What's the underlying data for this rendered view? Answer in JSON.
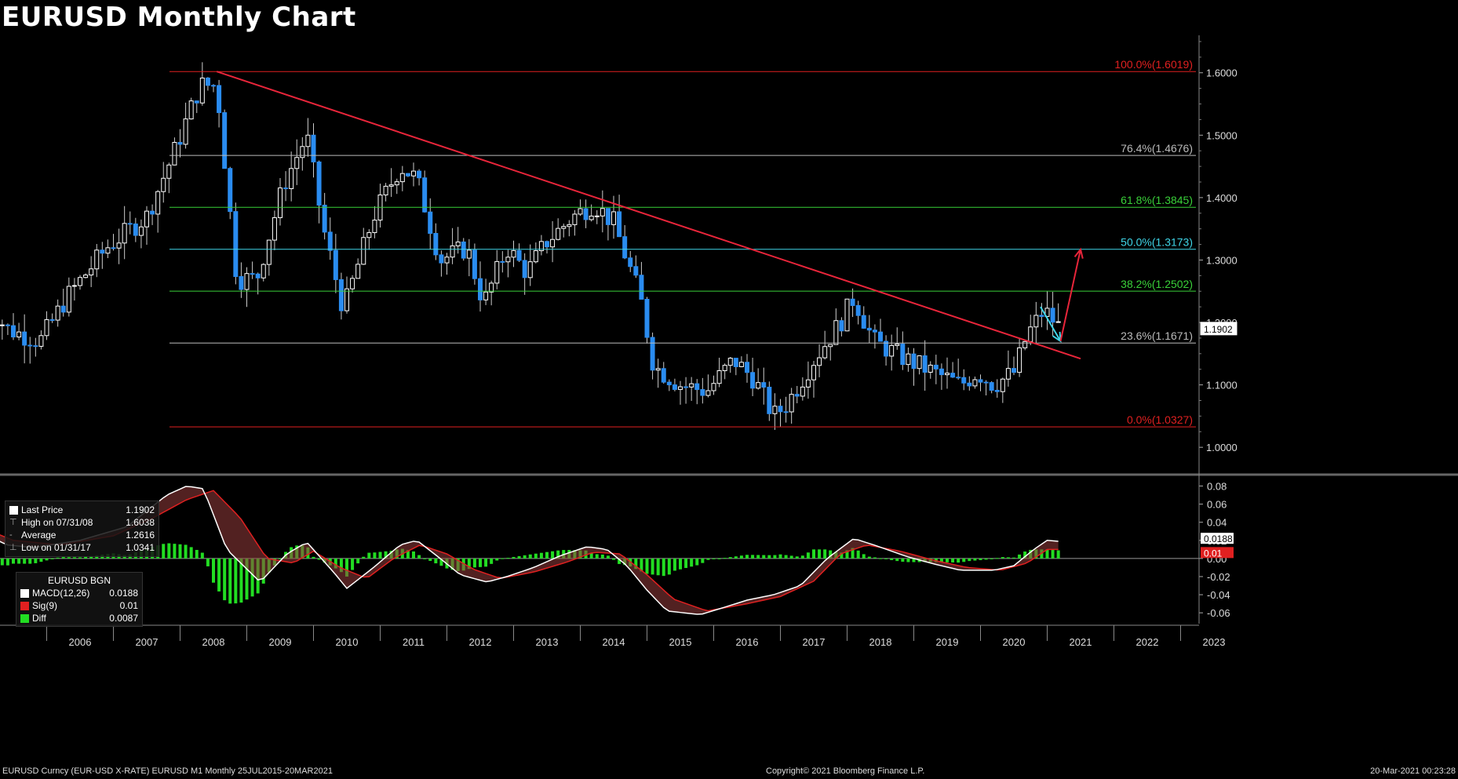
{
  "title": "EURUSD Monthly Chart",
  "footer": {
    "left": "EURUSD Curncy (EUR-USD X-RATE) EURUSD M1  Monthly 25JUL2015-20MAR2021",
    "center": "Copyright© 2021 Bloomberg Finance L.P.",
    "right": "20-Mar-2021 00:23:28"
  },
  "price_legend": {
    "last_price_label": "Last Price",
    "last_price": "1.1902",
    "high_label": "High on 07/31/08",
    "high": "1.6038",
    "avg_label": "Average",
    "avg": "1.2616",
    "low_label": "Low on 01/31/17",
    "low": "1.0341"
  },
  "macd_legend": {
    "title": "EURUSD BGN",
    "macd_label": "MACD(12,26)",
    "macd": "0.0188",
    "sig_label": "Sig(9)",
    "sig": "0.01",
    "diff_label": "Diff",
    "diff": "0.0087"
  },
  "colors": {
    "background": "#000000",
    "bull_candle": "#ffffff",
    "bear_candle": "#2a8cf0",
    "trendline": "#e8253a",
    "fib_red": "#e02020",
    "fib_gray": "#bbbbbb",
    "fib_green": "#39d039",
    "fib_cyan": "#3fd6e8",
    "macd_line": "#ffffff",
    "signal_line": "#e02020",
    "hist": "#22dd22"
  },
  "chart_data": [
    {
      "type": "candlestick",
      "title": "EURUSD Monthly Chart",
      "x_tick_labels": [
        "2006",
        "2007",
        "2008",
        "2009",
        "2010",
        "2011",
        "2012",
        "2013",
        "2014",
        "2015",
        "2016",
        "2017",
        "2018",
        "2019",
        "2020",
        "2021",
        "2022",
        "2023"
      ],
      "y_range": [
        0.96,
        1.66
      ],
      "y_ticks": [
        1.0,
        1.1,
        1.2,
        1.3,
        1.4,
        1.5,
        1.6
      ],
      "y_tick_labels": [
        "1.0000",
        "1.1000",
        "1.2000",
        "1.3000",
        "1.4000",
        "1.5000",
        "1.6000"
      ],
      "last_price_tag": "1.1902",
      "monthly_close_anchors": [
        [
          2005.0,
          1.245
        ],
        [
          2005.4,
          1.19
        ],
        [
          2005.9,
          1.17
        ],
        [
          2006.3,
          1.24
        ],
        [
          2006.9,
          1.32
        ],
        [
          2007.5,
          1.37
        ],
        [
          2007.9,
          1.47
        ],
        [
          2008.3,
          1.58
        ],
        [
          2008.55,
          1.58
        ],
        [
          2008.85,
          1.27
        ],
        [
          2009.15,
          1.27
        ],
        [
          2009.55,
          1.42
        ],
        [
          2009.9,
          1.5
        ],
        [
          2010.15,
          1.35
        ],
        [
          2010.45,
          1.22
        ],
        [
          2010.9,
          1.37
        ],
        [
          2011.3,
          1.45
        ],
        [
          2011.55,
          1.43
        ],
        [
          2011.9,
          1.3
        ],
        [
          2012.3,
          1.32
        ],
        [
          2012.55,
          1.23
        ],
        [
          2012.9,
          1.32
        ],
        [
          2013.2,
          1.28
        ],
        [
          2013.5,
          1.33
        ],
        [
          2013.9,
          1.37
        ],
        [
          2014.2,
          1.39
        ],
        [
          2014.5,
          1.36
        ],
        [
          2014.9,
          1.24
        ],
        [
          2015.1,
          1.13
        ],
        [
          2015.5,
          1.1
        ],
        [
          2015.9,
          1.09
        ],
        [
          2016.3,
          1.14
        ],
        [
          2016.6,
          1.11
        ],
        [
          2016.9,
          1.05
        ],
        [
          2017.1,
          1.07
        ],
        [
          2017.5,
          1.14
        ],
        [
          2017.9,
          1.2
        ],
        [
          2018.1,
          1.24
        ],
        [
          2018.4,
          1.17
        ],
        [
          2018.9,
          1.14
        ],
        [
          2019.3,
          1.12
        ],
        [
          2019.7,
          1.1
        ],
        [
          2019.95,
          1.12
        ],
        [
          2020.2,
          1.1
        ],
        [
          2020.5,
          1.12
        ],
        [
          2020.7,
          1.18
        ],
        [
          2020.95,
          1.22
        ],
        [
          2021.2,
          1.19
        ]
      ],
      "fib_levels": [
        {
          "label": "100.0%(1.6019)",
          "value": 1.6019,
          "color": "red"
        },
        {
          "label": "76.4%(1.4676)",
          "value": 1.4676,
          "color": "gray"
        },
        {
          "label": "61.8%(1.3845)",
          "value": 1.3845,
          "color": "green"
        },
        {
          "label": "50.0%(1.3173)",
          "value": 1.3173,
          "color": "cyan"
        },
        {
          "label": "38.2%(1.2502)",
          "value": 1.2502,
          "color": "green"
        },
        {
          "label": "23.6%(1.1671)",
          "value": 1.1671,
          "color": "gray"
        },
        {
          "label": "0.0%(1.0327)",
          "value": 1.0327,
          "color": "red"
        }
      ],
      "trendline": {
        "start": [
          2008.55,
          1.6019
        ],
        "end": [
          2021.5,
          1.142
        ]
      },
      "arrows": [
        {
          "from": [
            2020.9,
            1.225
          ],
          "to": [
            2021.2,
            1.17
          ],
          "color": "cyan"
        },
        {
          "from": [
            2021.2,
            1.17
          ],
          "to": [
            2021.5,
            1.317
          ],
          "color": "red"
        }
      ]
    },
    {
      "type": "line",
      "title": "EURUSD BGN",
      "series": [
        {
          "name": "MACD(12,26)",
          "last": 0.0188
        },
        {
          "name": "Sig(9)",
          "last": 0.01
        },
        {
          "name": "Diff",
          "last": 0.0087
        }
      ],
      "y_range": [
        -0.072,
        0.09
      ],
      "y_ticks": [
        -0.06,
        -0.04,
        -0.02,
        0.0,
        0.02,
        0.04,
        0.06,
        0.08
      ],
      "y_tick_labels": [
        "-0.06",
        "-0.04",
        "-0.02",
        "0.00",
        "0.02",
        "0.04",
        "0.06",
        "0.08"
      ],
      "value_tags": [
        "0.0188",
        "0.01"
      ],
      "macd_anchors": [
        [
          2005.0,
          0.03
        ],
        [
          2005.4,
          0.015
        ],
        [
          2005.8,
          0.012
        ],
        [
          2006.5,
          0.02
        ],
        [
          2007.2,
          0.035
        ],
        [
          2007.8,
          0.07
        ],
        [
          2008.1,
          0.08
        ],
        [
          2008.35,
          0.077
        ],
        [
          2008.7,
          0.01
        ],
        [
          2009.2,
          -0.026
        ],
        [
          2009.6,
          0.005
        ],
        [
          2009.9,
          0.018
        ],
        [
          2010.3,
          -0.015
        ],
        [
          2010.5,
          -0.033
        ],
        [
          2010.9,
          -0.01
        ],
        [
          2011.3,
          0.015
        ],
        [
          2011.55,
          0.02
        ],
        [
          2011.9,
          0.0
        ],
        [
          2012.2,
          -0.018
        ],
        [
          2012.6,
          -0.026
        ],
        [
          2012.9,
          -0.02
        ],
        [
          2013.3,
          -0.01
        ],
        [
          2013.7,
          0.003
        ],
        [
          2014.1,
          0.013
        ],
        [
          2014.4,
          0.01
        ],
        [
          2014.7,
          -0.008
        ],
        [
          2015.0,
          -0.035
        ],
        [
          2015.3,
          -0.058
        ],
        [
          2015.8,
          -0.062
        ],
        [
          2016.2,
          -0.053
        ],
        [
          2016.5,
          -0.046
        ],
        [
          2016.9,
          -0.04
        ],
        [
          2017.3,
          -0.03
        ],
        [
          2017.7,
          0.0
        ],
        [
          2018.1,
          0.022
        ],
        [
          2018.4,
          0.015
        ],
        [
          2018.9,
          0.002
        ],
        [
          2019.3,
          -0.006
        ],
        [
          2019.7,
          -0.013
        ],
        [
          2020.2,
          -0.013
        ],
        [
          2020.5,
          -0.008
        ],
        [
          2020.8,
          0.01
        ],
        [
          2021.0,
          0.02
        ],
        [
          2021.2,
          0.0188
        ]
      ],
      "signal_anchors": [
        [
          2005.0,
          0.035
        ],
        [
          2005.5,
          0.02
        ],
        [
          2006.2,
          0.015
        ],
        [
          2007.0,
          0.025
        ],
        [
          2007.6,
          0.045
        ],
        [
          2008.1,
          0.065
        ],
        [
          2008.5,
          0.075
        ],
        [
          2008.9,
          0.045
        ],
        [
          2009.3,
          0.0
        ],
        [
          2009.7,
          -0.005
        ],
        [
          2010.0,
          0.008
        ],
        [
          2010.4,
          -0.01
        ],
        [
          2010.8,
          -0.022
        ],
        [
          2011.2,
          0.0
        ],
        [
          2011.6,
          0.015
        ],
        [
          2012.0,
          0.005
        ],
        [
          2012.4,
          -0.012
        ],
        [
          2012.8,
          -0.022
        ],
        [
          2013.3,
          -0.015
        ],
        [
          2013.8,
          -0.004
        ],
        [
          2014.2,
          0.007
        ],
        [
          2014.6,
          0.005
        ],
        [
          2015.0,
          -0.018
        ],
        [
          2015.4,
          -0.045
        ],
        [
          2015.9,
          -0.058
        ],
        [
          2016.5,
          -0.05
        ],
        [
          2017.0,
          -0.042
        ],
        [
          2017.5,
          -0.025
        ],
        [
          2017.9,
          0.005
        ],
        [
          2018.3,
          0.015
        ],
        [
          2018.8,
          0.008
        ],
        [
          2019.3,
          -0.002
        ],
        [
          2019.8,
          -0.01
        ],
        [
          2020.3,
          -0.013
        ],
        [
          2020.7,
          -0.005
        ],
        [
          2021.0,
          0.01
        ],
        [
          2021.2,
          0.01
        ]
      ]
    }
  ]
}
